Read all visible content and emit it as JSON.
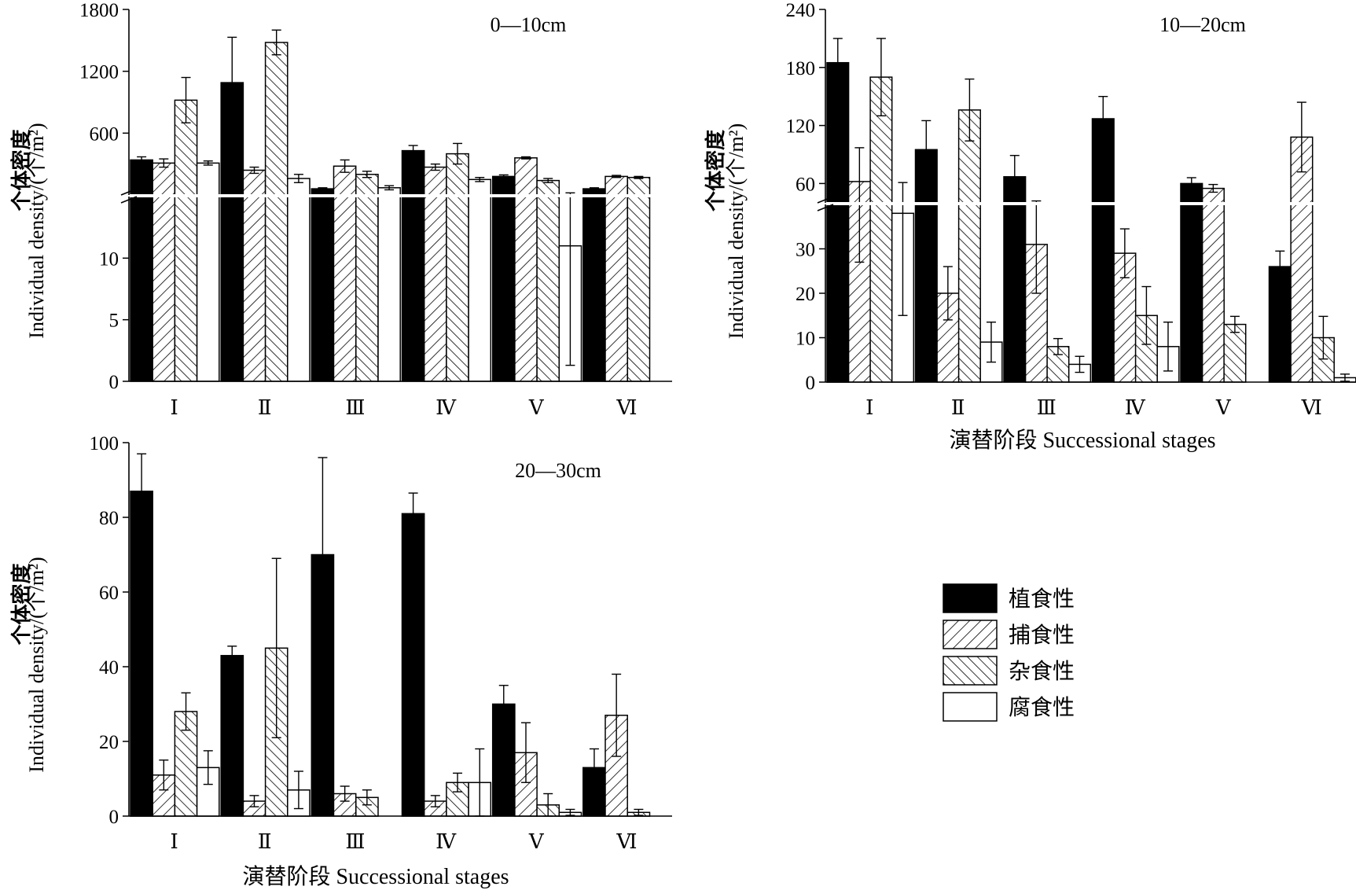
{
  "legend": {
    "items": [
      {
        "label": "植食性",
        "pattern": "solid"
      },
      {
        "label": "捕食性",
        "pattern": "hatch-forward"
      },
      {
        "label": "杂食性",
        "pattern": "hatch-backward"
      },
      {
        "label": "腐食性",
        "pattern": "empty"
      }
    ]
  },
  "chart_data": [
    {
      "type": "bar",
      "depth_label": "0—10cm",
      "ylabel_cn": "个体密度",
      "ylabel_en": "Individual density/(个/m²)",
      "xlabel": "",
      "categories": [
        "Ⅰ",
        "Ⅱ",
        "Ⅲ",
        "Ⅳ",
        "Ⅴ",
        "Ⅵ"
      ],
      "axis_break": true,
      "lower_ylim": [
        0,
        15
      ],
      "lower_yticks": [
        0,
        5,
        10
      ],
      "upper_ylim": [
        0,
        1800
      ],
      "upper_yticks": [
        600,
        1200,
        1800
      ],
      "series": [
        {
          "name": "植食性",
          "values": [
            340,
            1090,
            60,
            430,
            180,
            60
          ],
          "errors": [
            30,
            440,
            10,
            50,
            15,
            10
          ]
        },
        {
          "name": "捕食性",
          "values": [
            310,
            240,
            280,
            270,
            360,
            180
          ],
          "errors": [
            40,
            30,
            60,
            30,
            10,
            10
          ]
        },
        {
          "name": "杂食性",
          "values": [
            920,
            1480,
            200,
            400,
            140,
            170
          ],
          "errors": [
            220,
            120,
            30,
            100,
            20,
            10
          ]
        },
        {
          "name": "腐食性",
          "values": [
            310,
            160,
            70,
            150,
            11,
            null
          ],
          "errors": [
            20,
            40,
            20,
            20,
            9.7,
            null
          ]
        }
      ]
    },
    {
      "type": "bar",
      "depth_label": "10—20cm",
      "ylabel_cn": "个体密度",
      "ylabel_en": "Individual density/(个/m²)",
      "xlabel": "演替阶段 Successional stages",
      "categories": [
        "Ⅰ",
        "Ⅱ",
        "Ⅲ",
        "Ⅳ",
        "Ⅴ",
        "Ⅵ"
      ],
      "axis_break": true,
      "lower_ylim": [
        0,
        40
      ],
      "lower_yticks": [
        0,
        10,
        20,
        30
      ],
      "upper_ylim": [
        40,
        240
      ],
      "upper_yticks": [
        60,
        120,
        180,
        240
      ],
      "series": [
        {
          "name": "植食性",
          "values": [
            185,
            95,
            67,
            127,
            60,
            26
          ],
          "errors": [
            25,
            30,
            22,
            23,
            6,
            3.5
          ]
        },
        {
          "name": "捕食性",
          "values": [
            62,
            20,
            31,
            29,
            55,
            108
          ],
          "errors": [
            35,
            6,
            11,
            5.5,
            4,
            36
          ]
        },
        {
          "name": "杂食性",
          "values": [
            170,
            136,
            8,
            15,
            13,
            10
          ],
          "errors": [
            40,
            32,
            1.8,
            6.5,
            1.8,
            4.8
          ]
        },
        {
          "name": "腐食性",
          "values": [
            38,
            9,
            4,
            8,
            null,
            1
          ],
          "errors": [
            23,
            4.5,
            1.8,
            5.5,
            null,
            0.8
          ]
        }
      ]
    },
    {
      "type": "bar",
      "depth_label": "20—30cm",
      "ylabel_cn": "个体密度",
      "ylabel_en": "Individual density/(个/m²)",
      "xlabel": "演替阶段 Successional stages",
      "categories": [
        "Ⅰ",
        "Ⅱ",
        "Ⅲ",
        "Ⅳ",
        "Ⅴ",
        "Ⅵ"
      ],
      "axis_break": false,
      "ylim": [
        0,
        100
      ],
      "yticks": [
        0,
        20,
        40,
        60,
        80,
        100
      ],
      "series": [
        {
          "name": "植食性",
          "values": [
            87,
            43,
            70,
            81,
            30,
            13
          ],
          "errors": [
            10,
            2.5,
            26,
            5.5,
            5,
            5
          ]
        },
        {
          "name": "捕食性",
          "values": [
            11,
            4,
            6,
            4,
            17,
            27
          ],
          "errors": [
            4,
            1.5,
            2,
            1.5,
            8,
            11
          ]
        },
        {
          "name": "杂食性",
          "values": [
            28,
            45,
            5,
            9,
            3,
            1
          ],
          "errors": [
            5,
            24,
            2,
            2.5,
            3,
            0.8
          ]
        },
        {
          "name": "腐食性",
          "values": [
            13,
            7,
            null,
            9,
            1,
            null
          ],
          "errors": [
            4.5,
            5,
            null,
            9,
            0.8,
            null
          ]
        }
      ]
    }
  ]
}
